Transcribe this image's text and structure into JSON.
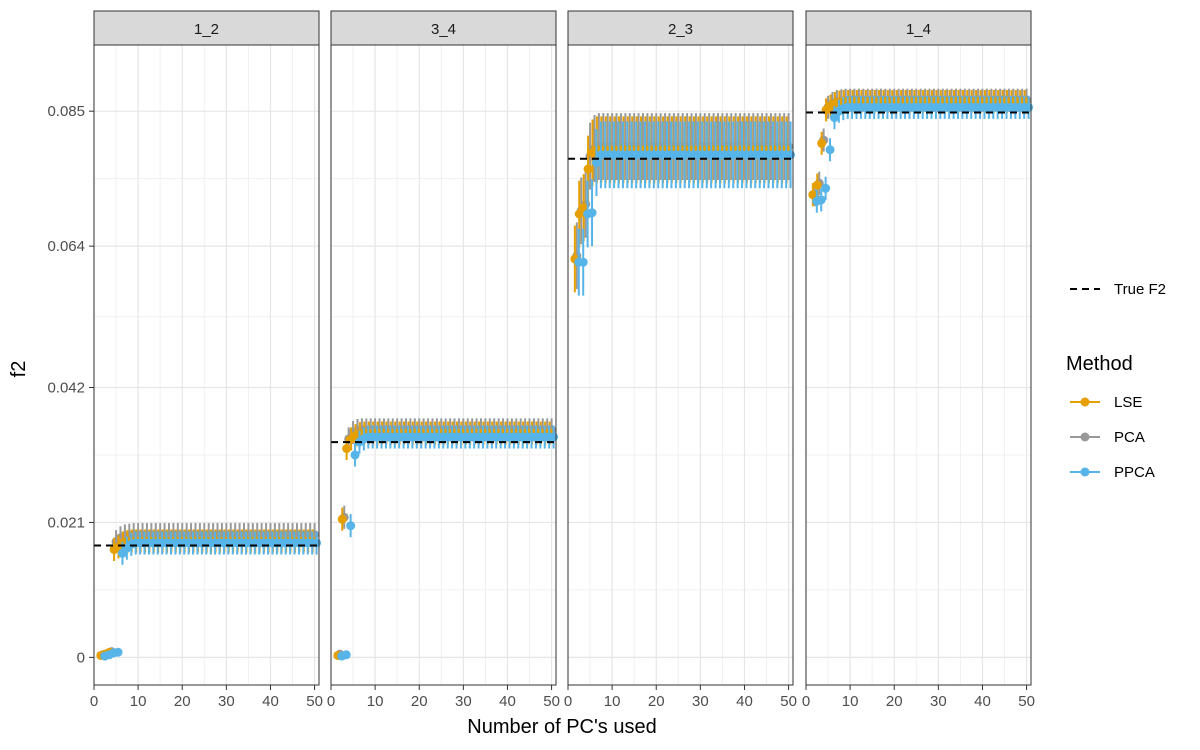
{
  "chart_data": {
    "type": "scatter",
    "xlabel": "Number of PC's used",
    "ylabel": "f2",
    "xlim": [
      0,
      51
    ],
    "ylim": [
      -0.0043,
      0.0953
    ],
    "x_ticks": [
      0,
      10,
      20,
      30,
      40,
      50
    ],
    "x_tick_labels": [
      "0",
      "10",
      "20",
      "30",
      "40",
      "50"
    ],
    "y_ticks": [
      0,
      0.021,
      0.042,
      0.064,
      0.085
    ],
    "y_tick_labels": [
      "0",
      "0.021",
      "0.042",
      "0.064",
      "0.085"
    ],
    "grid": true,
    "legend_position": "right",
    "legend": {
      "line_entry": "True F2",
      "title": "Method",
      "methods": [
        "LSE",
        "PCA",
        "PPCA"
      ]
    },
    "colors": {
      "LSE": "#E69F00",
      "PCA": "#999999",
      "PPCA": "#56B4E9",
      "true_line": "#000000"
    },
    "x_range": [
      2,
      50
    ],
    "facets": [
      {
        "label": "1_2",
        "true_f2": 0.0174,
        "series": [
          {
            "name": "LSE",
            "points": [
              [
                2,
                0.0003
              ],
              [
                3,
                0.0005
              ],
              [
                4,
                0.0008
              ],
              [
                5,
                0.0168
              ],
              [
                6,
                0.0172
              ],
              [
                7,
                0.0178
              ],
              [
                8,
                0.018
              ]
            ],
            "plateau": 0.0181,
            "err": 0.0018
          },
          {
            "name": "PCA",
            "points": [
              [
                2,
                0.0004
              ],
              [
                3,
                0.0006
              ],
              [
                4,
                0.0009
              ],
              [
                5,
                0.018
              ],
              [
                6,
                0.0186
              ],
              [
                7,
                0.0189
              ],
              [
                8,
                0.019
              ]
            ],
            "plateau": 0.0191,
            "err": 0.0018
          },
          {
            "name": "PPCA",
            "points": [
              [
                2,
                0.0002
              ],
              [
                3,
                0.0004
              ],
              [
                4,
                0.0007
              ],
              [
                5,
                0.0008
              ],
              [
                6,
                0.0162
              ],
              [
                7,
                0.017
              ],
              [
                8,
                0.0176
              ]
            ],
            "plateau": 0.0178,
            "err": 0.0018
          }
        ]
      },
      {
        "label": "3_4",
        "true_f2": 0.0335,
        "series": [
          {
            "name": "LSE",
            "points": [
              [
                2,
                0.0003
              ],
              [
                3,
                0.0215
              ],
              [
                4,
                0.0325
              ],
              [
                5,
                0.034
              ],
              [
                6,
                0.0345
              ],
              [
                7,
                0.0348
              ]
            ],
            "plateau": 0.0349,
            "err": 0.0018
          },
          {
            "name": "PCA",
            "points": [
              [
                2,
                0.0005
              ],
              [
                3,
                0.0218
              ],
              [
                4,
                0.034
              ],
              [
                5,
                0.035
              ],
              [
                6,
                0.0353
              ],
              [
                7,
                0.0354
              ]
            ],
            "plateau": 0.0354,
            "err": 0.0018
          },
          {
            "name": "PPCA",
            "points": [
              [
                2,
                0.0002
              ],
              [
                3,
                0.0004
              ],
              [
                4,
                0.0205
              ],
              [
                5,
                0.0315
              ],
              [
                6,
                0.0335
              ],
              [
                7,
                0.034
              ]
            ],
            "plateau": 0.0343,
            "err": 0.0018
          }
        ]
      },
      {
        "label": "2_3",
        "true_f2": 0.0776,
        "series": [
          {
            "name": "LSE",
            "points": [
              [
                2,
                0.062
              ],
              [
                3,
                0.069
              ],
              [
                4,
                0.07
              ],
              [
                5,
                0.076
              ],
              [
                6,
                0.0785
              ],
              [
                7,
                0.079
              ]
            ],
            "plateau": 0.079,
            "err": 0.0052
          },
          {
            "name": "PCA",
            "points": [
              [
                2,
                0.0625
              ],
              [
                3,
                0.0695
              ],
              [
                4,
                0.0705
              ],
              [
                5,
                0.078
              ],
              [
                6,
                0.0792
              ],
              [
                7,
                0.0795
              ]
            ],
            "plateau": 0.0795,
            "err": 0.0052
          },
          {
            "name": "PPCA",
            "points": [
              [
                2,
                0.0615
              ],
              [
                3,
                0.0615
              ],
              [
                4,
                0.069
              ],
              [
                5,
                0.0692
              ],
              [
                6,
                0.077
              ],
              [
                7,
                0.0782
              ]
            ],
            "plateau": 0.0782,
            "err": 0.0052
          }
        ]
      },
      {
        "label": "1_4",
        "true_f2": 0.0848,
        "series": [
          {
            "name": "LSE",
            "points": [
              [
                2,
                0.072
              ],
              [
                3,
                0.0735
              ],
              [
                4,
                0.08
              ],
              [
                5,
                0.0852
              ],
              [
                6,
                0.0858
              ],
              [
                7,
                0.0862
              ],
              [
                8,
                0.0864
              ]
            ],
            "plateau": 0.0865,
            "err": 0.0018
          },
          {
            "name": "PCA",
            "points": [
              [
                2,
                0.072
              ],
              [
                3,
                0.0738
              ],
              [
                4,
                0.0805
              ],
              [
                5,
                0.0856
              ],
              [
                6,
                0.0862
              ],
              [
                7,
                0.0865
              ],
              [
                8,
                0.0866
              ]
            ],
            "plateau": 0.0867,
            "err": 0.0018
          },
          {
            "name": "PPCA",
            "points": [
              [
                2,
                0.071
              ],
              [
                3,
                0.0712
              ],
              [
                4,
                0.073
              ],
              [
                5,
                0.079
              ],
              [
                6,
                0.084
              ],
              [
                7,
                0.085
              ],
              [
                8,
                0.0854
              ]
            ],
            "plateau": 0.0856,
            "err": 0.0018
          }
        ]
      }
    ]
  }
}
